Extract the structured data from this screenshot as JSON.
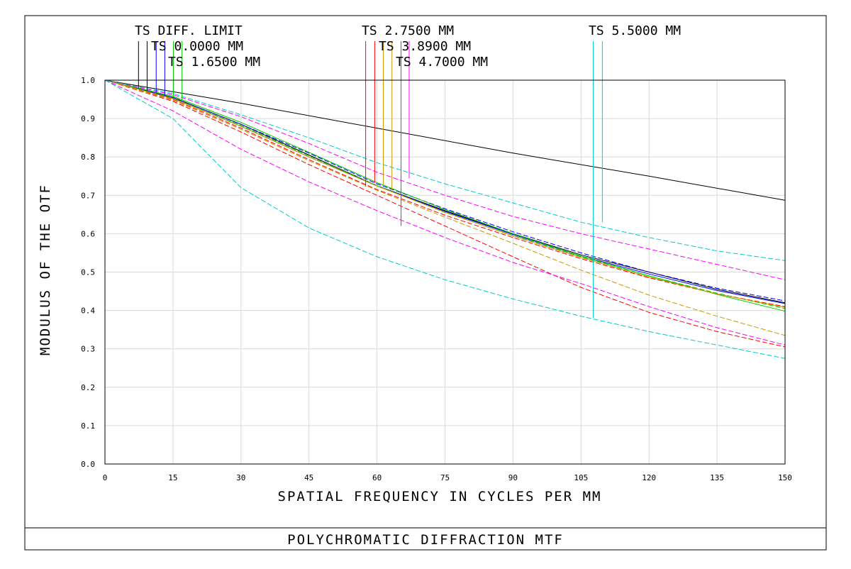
{
  "chart_data": {
    "type": "line",
    "title": "POLYCHROMATIC DIFFRACTION MTF",
    "xlabel": "SPATIAL FREQUENCY IN CYCLES PER MM",
    "ylabel": "MODULUS OF THE OTF",
    "xlim": [
      0,
      150
    ],
    "ylim": [
      0,
      1
    ],
    "x_ticks": [
      "0",
      "15",
      "30",
      "45",
      "60",
      "75",
      "90",
      "105",
      "120",
      "135",
      "150"
    ],
    "y_ticks": [
      "0.0",
      "0.1",
      "0.2",
      "0.3",
      "0.4",
      "0.5",
      "0.6",
      "0.7",
      "0.8",
      "0.9",
      "1.0"
    ],
    "grid": true,
    "legend_labels": [
      "TS DIFF. LIMIT",
      "TS 0.0000 MM",
      "TS 1.6500 MM",
      "TS 2.7500 MM",
      "TS 3.8900 MM",
      "TS 4.7000 MM",
      "TS 5.5000 MM"
    ],
    "series": [
      {
        "color": "#000000",
        "dash": "",
        "x": [
          0,
          30,
          60,
          90,
          120,
          150
        ],
        "y": [
          1.0,
          0.94,
          0.875,
          0.81,
          0.75,
          0.687
        ]
      },
      {
        "color": "#000000",
        "dash": "",
        "x": [
          0,
          15,
          30,
          45,
          60,
          75,
          90,
          105,
          120,
          135,
          150
        ],
        "y": [
          1.0,
          0.955,
          0.885,
          0.805,
          0.725,
          0.66,
          0.6,
          0.545,
          0.5,
          0.455,
          0.42
        ]
      },
      {
        "color": "#0000ff",
        "dash": "7,3",
        "x": [
          0,
          15,
          30,
          45,
          60,
          75,
          90,
          105,
          120,
          135,
          150
        ],
        "y": [
          1.0,
          0.955,
          0.885,
          0.81,
          0.73,
          0.665,
          0.605,
          0.55,
          0.5,
          0.458,
          0.425
        ]
      },
      {
        "color": "#0000ff",
        "dash": "",
        "x": [
          0,
          15,
          30,
          45,
          60,
          75,
          90,
          105,
          120,
          135,
          150
        ],
        "y": [
          1.0,
          0.953,
          0.88,
          0.8,
          0.725,
          0.658,
          0.598,
          0.542,
          0.495,
          0.452,
          0.418
        ]
      },
      {
        "color": "#00cc00",
        "dash": "",
        "x": [
          0,
          15,
          30,
          45,
          60,
          75,
          90,
          105,
          120,
          135,
          150
        ],
        "y": [
          1.0,
          0.958,
          0.89,
          0.812,
          0.733,
          0.663,
          0.6,
          0.542,
          0.49,
          0.442,
          0.398
        ]
      },
      {
        "color": "#00cc00",
        "dash": "7,3",
        "x": [
          0,
          15,
          30,
          45,
          60,
          75,
          90,
          105,
          120,
          135,
          150
        ],
        "y": [
          1.0,
          0.953,
          0.882,
          0.803,
          0.725,
          0.655,
          0.595,
          0.54,
          0.49,
          0.445,
          0.405
        ]
      },
      {
        "color": "#ff0000",
        "dash": "7,3",
        "x": [
          0,
          15,
          30,
          45,
          60,
          75,
          90,
          105,
          120,
          135,
          150
        ],
        "y": [
          1.0,
          0.95,
          0.875,
          0.793,
          0.715,
          0.648,
          0.59,
          0.535,
          0.485,
          0.443,
          0.41
        ]
      },
      {
        "color": "#ff0000",
        "dash": "7,3",
        "x": [
          0,
          15,
          30,
          45,
          60,
          75,
          90,
          105,
          120,
          135,
          150
        ],
        "y": [
          1.0,
          0.945,
          0.865,
          0.78,
          0.7,
          0.62,
          0.54,
          0.46,
          0.395,
          0.345,
          0.305
        ]
      },
      {
        "color": "#cc9900",
        "dash": "7,3",
        "x": [
          0,
          15,
          30,
          45,
          60,
          75,
          90,
          105,
          120,
          135,
          150
        ],
        "y": [
          1.0,
          0.947,
          0.872,
          0.79,
          0.713,
          0.643,
          0.575,
          0.505,
          0.44,
          0.385,
          0.335
        ]
      },
      {
        "color": "#cc9900",
        "dash": "",
        "x": [
          0,
          15,
          30,
          45,
          60,
          75,
          90,
          105,
          120,
          135,
          150
        ],
        "y": [
          1.0,
          0.952,
          0.88,
          0.8,
          0.724,
          0.656,
          0.594,
          0.538,
          0.487,
          0.443,
          0.408
        ]
      },
      {
        "color": "#ff00ff",
        "dash": "7,3",
        "x": [
          0,
          15,
          30,
          45,
          60,
          75,
          90,
          105,
          120,
          135,
          150
        ],
        "y": [
          1.0,
          0.962,
          0.905,
          0.835,
          0.76,
          0.7,
          0.645,
          0.6,
          0.56,
          0.52,
          0.48
        ]
      },
      {
        "color": "#ff00ff",
        "dash": "7,3",
        "x": [
          0,
          15,
          30,
          45,
          60,
          75,
          90,
          105,
          120,
          135,
          150
        ],
        "y": [
          1.0,
          0.92,
          0.82,
          0.735,
          0.66,
          0.59,
          0.525,
          0.47,
          0.41,
          0.355,
          0.31
        ]
      },
      {
        "color": "#00cccc",
        "dash": "7,3",
        "x": [
          0,
          15,
          30,
          45,
          60,
          75,
          90,
          105,
          120,
          135,
          150
        ],
        "y": [
          1.0,
          0.965,
          0.91,
          0.85,
          0.785,
          0.73,
          0.68,
          0.63,
          0.59,
          0.555,
          0.53
        ]
      },
      {
        "color": "#00cccc",
        "dash": "7,3",
        "x": [
          0,
          15,
          20,
          30,
          45,
          60,
          75,
          90,
          105,
          120,
          135,
          150
        ],
        "y": [
          1.0,
          0.9,
          0.84,
          0.72,
          0.615,
          0.54,
          0.48,
          0.43,
          0.385,
          0.345,
          0.31,
          0.275
        ]
      }
    ],
    "markers": [
      {
        "color": "#000000",
        "x": 7.4,
        "y": 0.98
      },
      {
        "color": "#000000",
        "x": 9.3,
        "y": 0.973
      },
      {
        "color": "#0000ff",
        "x": 11.3,
        "y": 0.968
      },
      {
        "color": "#0000ff",
        "x": 13.2,
        "y": 0.96
      },
      {
        "color": "#00cc00",
        "x": 15.1,
        "y": 0.955
      },
      {
        "color": "#00cc00",
        "x": 17.0,
        "y": 0.95
      },
      {
        "color": "#ff0000",
        "x": 57.5,
        "y": 0.723
      },
      {
        "color": "#ff0000",
        "x": 59.5,
        "y": 0.733
      },
      {
        "color": "#cc9900",
        "x": 61.4,
        "y": 0.728
      },
      {
        "color": "#cc9900",
        "x": 63.3,
        "y": 0.713
      },
      {
        "color": "#ff00ff",
        "x": 65.3,
        "y": 0.62
      },
      {
        "color": "#ff00ff",
        "x": 67.1,
        "y": 0.745
      },
      {
        "color": "#00cccc",
        "x": 107.7,
        "y": 0.38
      },
      {
        "color": "#00cccc",
        "x": 109.7,
        "y": 0.63
      }
    ]
  }
}
